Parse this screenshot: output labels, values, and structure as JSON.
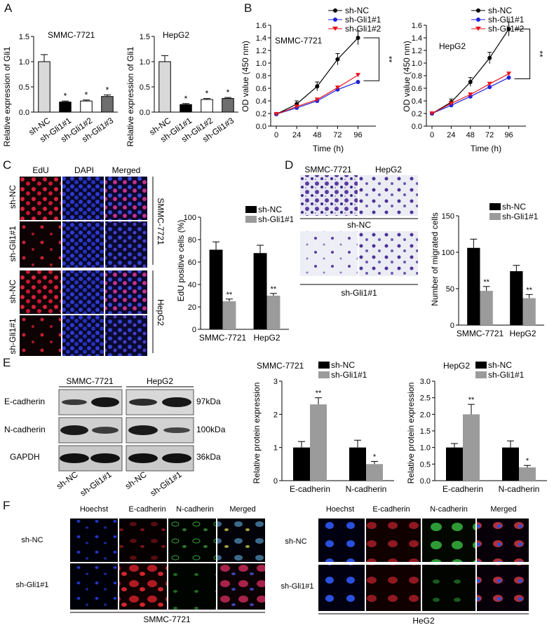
{
  "panels": {
    "A": "A",
    "B": "B",
    "C": "C",
    "D": "D",
    "E": "E",
    "F": "F"
  },
  "colors": {
    "black": "#000000",
    "red": "#e8141d",
    "blue": "#1e22d8",
    "lightgray": "#d9d9d9",
    "midgray": "#9b9b9b"
  },
  "panelA": {
    "ylabel": "Relative expression of Gli1",
    "charts": [
      {
        "title": "SMMC-7721",
        "categories": [
          "sh-NC",
          "sh-Gli1#1",
          "sh-Gli1#2",
          "sh-Gli1#3"
        ],
        "values": [
          1.0,
          0.2,
          0.22,
          0.31
        ],
        "errors": [
          0.14,
          0.02,
          0.02,
          0.03
        ],
        "stars": [
          "",
          "*",
          "*",
          "*"
        ],
        "yticks": [
          "0.0",
          "0.5",
          "1.0",
          "1.5"
        ],
        "ylim": [
          0,
          1.5
        ]
      },
      {
        "title": "HepG2",
        "categories": [
          "sh-NC",
          "sh-Gli1#1",
          "sh-Gli1#2",
          "sh-Gli1#3"
        ],
        "values": [
          1.0,
          0.15,
          0.25,
          0.27
        ],
        "errors": [
          0.12,
          0.02,
          0.02,
          0.02
        ],
        "stars": [
          "",
          "*",
          "*",
          "*"
        ],
        "yticks": [
          "0.0",
          "0.5",
          "1.0",
          "1.5"
        ],
        "ylim": [
          0,
          1.5
        ]
      }
    ]
  },
  "panelB": {
    "ylabel": "OD value (450 nm)",
    "xlabel": "Time (h)",
    "legend": [
      "sh-NC",
      "sh-Gli1#1",
      "sh-Gli1#2"
    ],
    "xticks": [
      "0",
      "24",
      "48",
      "72",
      "96"
    ],
    "yticks": [
      "0.0",
      "0.2",
      "0.4",
      "0.6",
      "0.8",
      "1.0",
      "1.2",
      "1.4",
      "1.6"
    ],
    "sig": "**",
    "charts": [
      {
        "title": "SMMC-7721",
        "series": [
          {
            "name": "sh-NC",
            "values": [
              0.19,
              0.35,
              0.63,
              1.06,
              1.4
            ]
          },
          {
            "name": "sh-Gli1#1",
            "values": [
              0.19,
              0.29,
              0.4,
              0.58,
              0.7
            ]
          },
          {
            "name": "sh-Gli1#2",
            "values": [
              0.19,
              0.31,
              0.42,
              0.61,
              0.81
            ]
          }
        ]
      },
      {
        "title": "HepG2",
        "series": [
          {
            "name": "sh-NC",
            "values": [
              0.2,
              0.38,
              0.7,
              1.08,
              1.54
            ]
          },
          {
            "name": "sh-Gli1#1",
            "values": [
              0.2,
              0.33,
              0.47,
              0.62,
              0.77
            ]
          },
          {
            "name": "sh-Gli1#2",
            "values": [
              0.2,
              0.36,
              0.5,
              0.67,
              0.83
            ]
          }
        ]
      }
    ]
  },
  "panelC": {
    "cols": [
      "EdU",
      "DAPI",
      "Merged"
    ],
    "rows": [
      "sh-NC",
      "sh-Gli1#1",
      "sh-NC",
      "sh-Gli1#1"
    ],
    "cells": [
      "SMMC-7721",
      "HepG2"
    ],
    "chart": {
      "ylabel": "EdU positive cells (%)",
      "categories": [
        "SMMC-7721",
        "HepG2"
      ],
      "legend": [
        "sh-NC",
        "sh-Gli1#1"
      ],
      "values": [
        [
          71,
          25
        ],
        [
          68,
          30
        ]
      ],
      "errors": [
        [
          7,
          2
        ],
        [
          7,
          2
        ]
      ],
      "stars": "**",
      "yticks": [
        "0",
        "20",
        "40",
        "60",
        "80",
        "100"
      ],
      "ylim": [
        0,
        100
      ]
    }
  },
  "panelD": {
    "cells": [
      "SMMC-7721",
      "HepG2"
    ],
    "rows": [
      "sh-NC",
      "sh-Gli1#1"
    ],
    "chart": {
      "ylabel": "Number of migrated cells",
      "categories": [
        "SMMC-7721",
        "HepG2"
      ],
      "legend": [
        "sh-NC",
        "sh-Gli1#1"
      ],
      "values": [
        [
          106,
          47
        ],
        [
          74,
          37
        ]
      ],
      "errors": [
        [
          12,
          6
        ],
        [
          8,
          5
        ]
      ],
      "stars": "**",
      "yticks": [
        "0",
        "50",
        "100",
        "150"
      ],
      "ylim": [
        0,
        150
      ]
    }
  },
  "panelE": {
    "blot": {
      "cells": [
        "SMMC-7721",
        "HepG2"
      ],
      "proteins": [
        "E-cadherin",
        "N-cadherin",
        "GAPDH"
      ],
      "sizes": [
        "97kDa",
        "100kDa",
        "36kDa"
      ],
      "lanes": [
        "sh-NC",
        "sh-Gli1#1",
        "sh-NC",
        "sh-Gli1#1"
      ]
    },
    "legend": [
      "sh-NC",
      "sh-Gli1#1"
    ],
    "ylabel": "Relative protein expression",
    "charts": [
      {
        "title": "SMMC-7721",
        "categories": [
          "E-cadherin",
          "N-cadherin"
        ],
        "values": [
          [
            1.0,
            2.3
          ],
          [
            1.0,
            0.5
          ]
        ],
        "errors": [
          [
            0.18,
            0.2
          ],
          [
            0.22,
            0.08
          ]
        ],
        "stars": [
          "**",
          "*"
        ],
        "yticks": [
          "0",
          "1",
          "2",
          "3"
        ],
        "ylim": [
          0,
          3
        ]
      },
      {
        "title": "HepG2",
        "categories": [
          "E-cadherin",
          "N-cadherin"
        ],
        "values": [
          [
            1.0,
            2.0
          ],
          [
            1.0,
            0.4
          ]
        ],
        "errors": [
          [
            0.12,
            0.3
          ],
          [
            0.2,
            0.06
          ]
        ],
        "stars": [
          "**",
          "*"
        ],
        "yticks": [
          "0.0",
          "0.5",
          "1.0",
          "1.5",
          "2.0",
          "2.5",
          "3.0"
        ],
        "ylim": [
          0,
          3
        ]
      }
    ]
  },
  "panelF": {
    "groups": [
      {
        "cols": [
          "Hoechst",
          "E-cadherin",
          "N-cadherin",
          "Merged"
        ],
        "rows": [
          "sh-NC",
          "sh-Gli1#1"
        ],
        "cell": "SMMC-7721"
      },
      {
        "cols": [
          "Hoechst",
          "E-cadherin",
          "N-cadherin",
          "Merged"
        ],
        "rows": [
          "sh-NC",
          "sh-Gli1#1"
        ],
        "cell": "HeG2"
      }
    ]
  }
}
